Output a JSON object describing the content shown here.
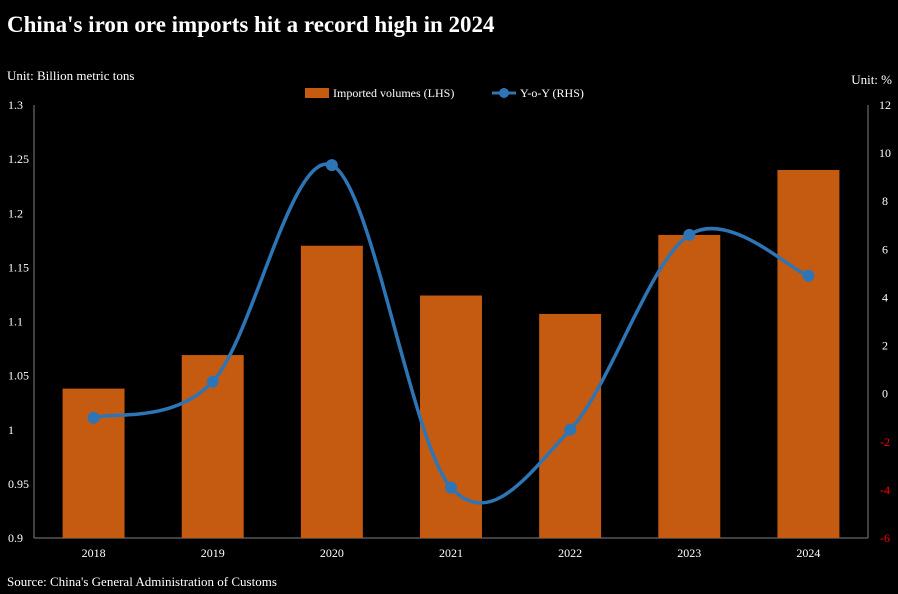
{
  "title": "China's iron ore imports hit a record high in 2024",
  "unit_left": "Unit: Billion metric tons",
  "unit_right": "Unit: %",
  "source": "Source: China's General Administration of Customs",
  "colors": {
    "bar": "#c55a11",
    "line": "#2e75b6",
    "negative_tick": "#ff0000",
    "text": "#ffffff",
    "axis": "#7f7f7f"
  },
  "chart_data": {
    "type": "bar",
    "title": "China's iron ore imports hit a record high in 2024",
    "categories": [
      "2018",
      "2019",
      "2020",
      "2021",
      "2022",
      "2023",
      "2024"
    ],
    "series": [
      {
        "name": "Imported volumes (LHS)",
        "type": "bar",
        "axis": "left",
        "values": [
          1.038,
          1.069,
          1.17,
          1.124,
          1.107,
          1.18,
          1.24
        ]
      },
      {
        "name": "Y-o-Y (RHS)",
        "type": "line",
        "axis": "right",
        "smooth": true,
        "values": [
          -1.0,
          0.5,
          9.5,
          -3.9,
          -1.5,
          6.6,
          4.9
        ]
      }
    ],
    "y_left": {
      "label": "Unit: Billion metric tons",
      "ylim": [
        0.9,
        1.3
      ],
      "ticks": [
        "0.9",
        "0.95",
        "1",
        "1.05",
        "1.1",
        "1.15",
        "1.2",
        "1.25",
        "1.3"
      ]
    },
    "y_right": {
      "label": "Unit: %",
      "ylim": [
        -6,
        12
      ],
      "ticks": [
        "-6",
        "-4",
        "-2",
        "0",
        "2",
        "4",
        "6",
        "8",
        "10",
        "12"
      ]
    },
    "legend": {
      "position": "top-center",
      "items": [
        "Imported volumes (LHS)",
        "Y-o-Y (RHS)"
      ]
    },
    "grid": false
  }
}
